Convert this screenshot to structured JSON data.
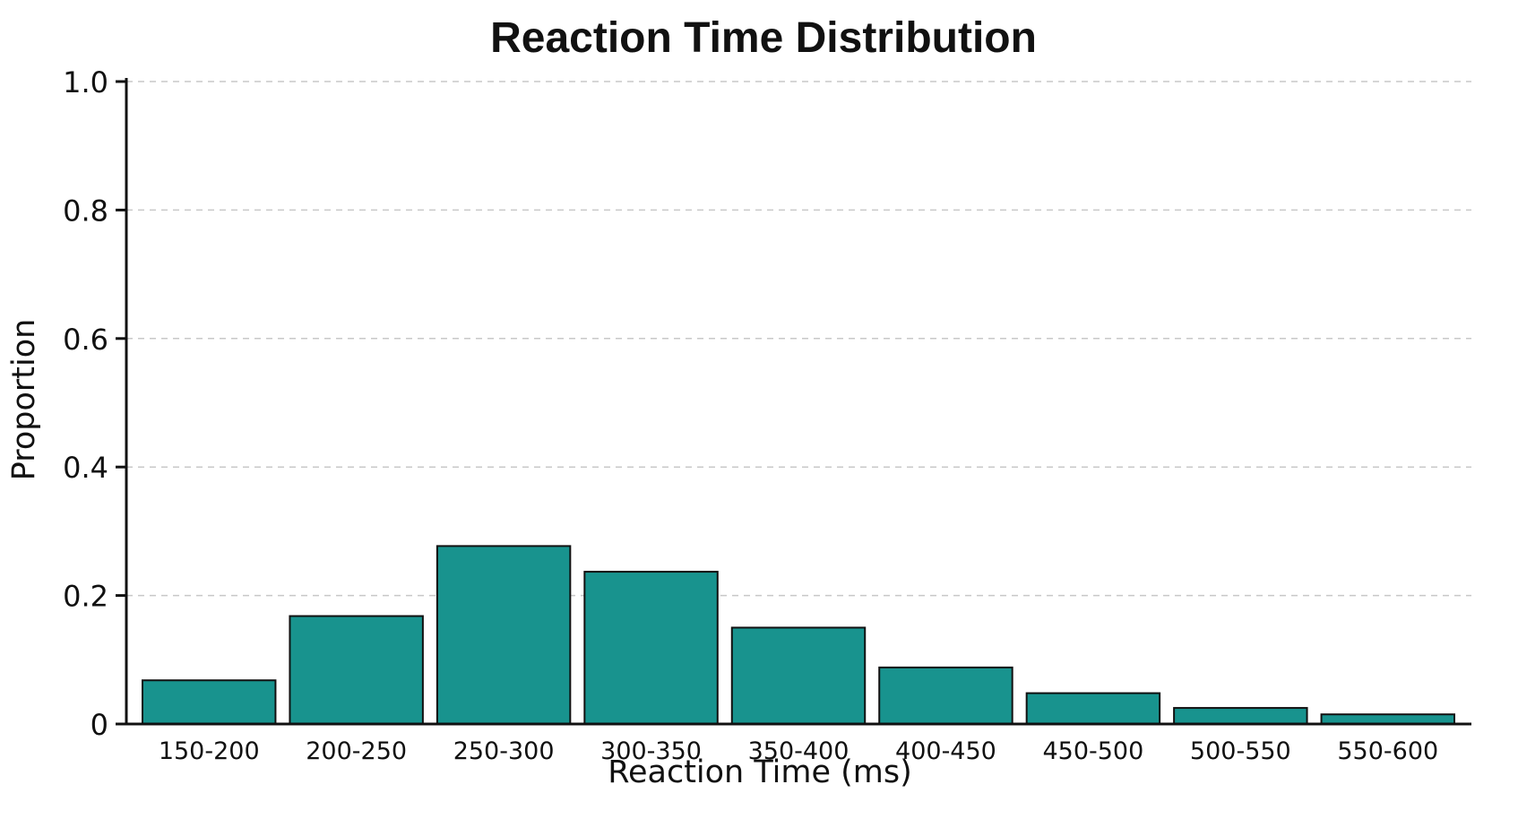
{
  "colors": {
    "bar_fill": "#18938E",
    "bar_edge": "#111111",
    "grid": "#c8c8c8",
    "axis": "#111111",
    "background": "#ffffff"
  },
  "chart_data": {
    "type": "bar",
    "title": "Reaction Time Distribution",
    "xlabel": "Reaction Time (ms)",
    "ylabel": "Proportion",
    "categories": [
      "150-200",
      "200-250",
      "250-300",
      "300-350",
      "350-400",
      "400-450",
      "450-500",
      "500-550",
      "550-600"
    ],
    "values": [
      0.068,
      0.168,
      0.277,
      0.237,
      0.15,
      0.088,
      0.048,
      0.025,
      0.015
    ],
    "ylim": [
      0,
      1.0
    ],
    "yticks": [
      0,
      0.2,
      0.4,
      0.6,
      0.8,
      1.0
    ],
    "ytick_labels": [
      "0",
      "0.2",
      "0.4",
      "0.6",
      "0.8",
      "1.0"
    ],
    "grid": "horizontal dashed",
    "legend": "none"
  }
}
